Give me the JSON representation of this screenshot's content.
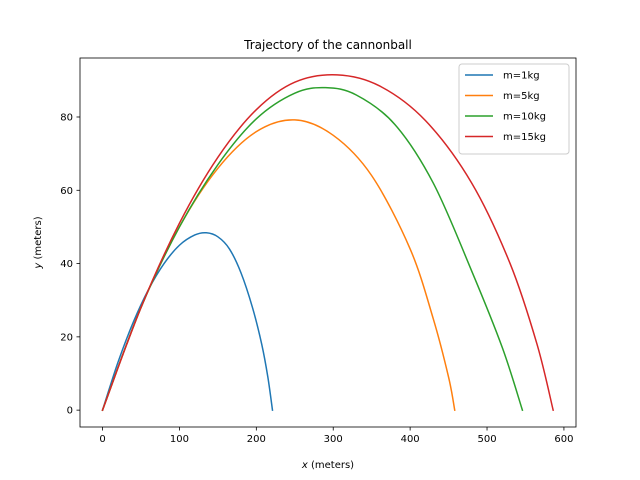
{
  "chart_data": {
    "type": "line",
    "title": "Trajectory of the cannonball",
    "xlabel": "x (meters)",
    "ylabel": "y (meters)",
    "xlim": [
      -29.3,
      615.7
    ],
    "ylim": [
      -4.6,
      96.1
    ],
    "xticks": [
      0,
      100,
      200,
      300,
      400,
      500,
      600
    ],
    "yticks": [
      0,
      20,
      40,
      60,
      80
    ],
    "grid": false,
    "legend_position": "top-right",
    "series": [
      {
        "name": "m=1kg",
        "color": "#1f77b4",
        "points": [
          [
            0,
            0
          ],
          [
            20,
            13
          ],
          [
            40,
            24
          ],
          [
            60,
            33
          ],
          [
            80,
            40
          ],
          [
            100,
            45
          ],
          [
            120,
            47.8
          ],
          [
            135,
            48.4
          ],
          [
            150,
            47.3
          ],
          [
            165,
            44
          ],
          [
            180,
            37.5
          ],
          [
            195,
            28
          ],
          [
            207,
            18
          ],
          [
            215,
            9
          ],
          [
            221,
            0
          ]
        ]
      },
      {
        "name": "m=5kg",
        "color": "#ff7f0e",
        "points": [
          [
            0,
            0
          ],
          [
            50,
            28
          ],
          [
            100,
            50
          ],
          [
            150,
            66
          ],
          [
            200,
            76
          ],
          [
            250,
            79.2
          ],
          [
            300,
            75
          ],
          [
            350,
            64
          ],
          [
            400,
            44
          ],
          [
            430,
            25
          ],
          [
            450,
            9
          ],
          [
            458,
            0
          ]
        ]
      },
      {
        "name": "m=10kg",
        "color": "#2ca02c",
        "points": [
          [
            0,
            0
          ],
          [
            50,
            28
          ],
          [
            100,
            50
          ],
          [
            150,
            67
          ],
          [
            200,
            79.5
          ],
          [
            250,
            86.5
          ],
          [
            290,
            88
          ],
          [
            330,
            86
          ],
          [
            380,
            78
          ],
          [
            430,
            62
          ],
          [
            480,
            38
          ],
          [
            520,
            17
          ],
          [
            546,
            0
          ]
        ]
      },
      {
        "name": "m=15kg",
        "color": "#d62728",
        "points": [
          [
            0,
            0
          ],
          [
            50,
            28
          ],
          [
            100,
            51
          ],
          [
            150,
            69
          ],
          [
            200,
            82
          ],
          [
            250,
            89.5
          ],
          [
            305,
            91.5
          ],
          [
            360,
            88.5
          ],
          [
            420,
            79
          ],
          [
            480,
            62
          ],
          [
            530,
            40
          ],
          [
            565,
            18
          ],
          [
            586,
            0
          ]
        ]
      }
    ]
  }
}
